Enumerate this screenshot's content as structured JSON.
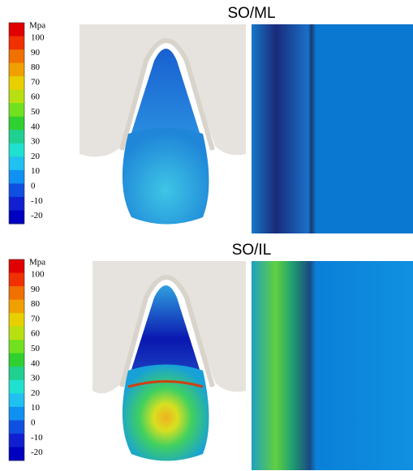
{
  "panels": [
    {
      "title": "SO/ML",
      "colorbar": {
        "unit": "Mpa",
        "labels": [
          "100",
          "90",
          "80",
          "70",
          "60",
          "50",
          "40",
          "30",
          "20",
          "10",
          "0",
          "-10",
          "-20"
        ]
      }
    },
    {
      "title": "SO/IL",
      "colorbar": {
        "unit": "Mpa",
        "labels": [
          "100",
          "90",
          "80",
          "70",
          "60",
          "50",
          "40",
          "30",
          "20",
          "10",
          "0",
          "-10",
          "-20"
        ]
      }
    }
  ]
}
